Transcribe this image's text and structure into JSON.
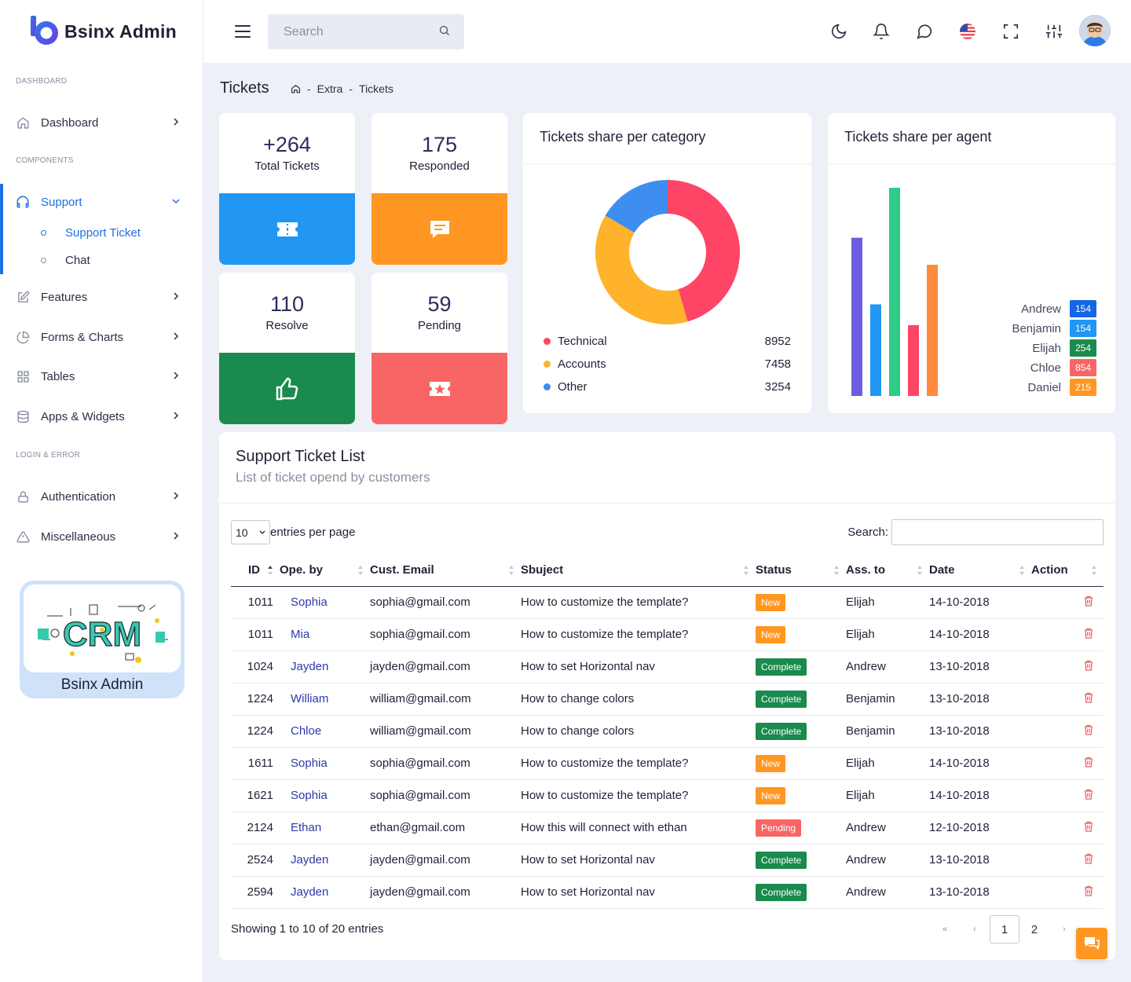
{
  "app": {
    "name": "Bsinx Admin"
  },
  "sidebar": {
    "sections": [
      "DASHBOARD",
      "COMPONENTS",
      "LOGIN & ERROR"
    ],
    "items": [
      {
        "label": "Dashboard",
        "icon": "home-icon"
      },
      {
        "label": "Support",
        "icon": "headphones-icon"
      },
      {
        "label": "Features",
        "icon": "edit-icon"
      },
      {
        "label": "Forms & Charts",
        "icon": "pie-chart-icon"
      },
      {
        "label": "Tables",
        "icon": "grid-icon"
      },
      {
        "label": "Apps & Widgets",
        "icon": "database-icon"
      },
      {
        "label": "Authentication",
        "icon": "lock-icon"
      },
      {
        "label": "Miscellaneous",
        "icon": "alert-triangle-icon"
      }
    ],
    "support_sub": [
      "Support Ticket",
      "Chat"
    ],
    "promo": {
      "title": "Bsinx Admin",
      "image_text": "CRM"
    }
  },
  "header": {
    "search_placeholder": "Search",
    "icons": [
      "moon-icon",
      "bell-icon",
      "chat-bubble-icon",
      "us-flag-icon",
      "fullscreen-icon",
      "sliders-icon"
    ]
  },
  "page": {
    "title": "Tickets",
    "breadcrumb": [
      "Extra",
      "Tickets"
    ],
    "breadcrumb_sep": "-"
  },
  "stats": [
    {
      "value": "+264",
      "label": "Total Tickets",
      "color": "#2196f3",
      "icon": "ticket-icon"
    },
    {
      "value": "175",
      "label": "Responded",
      "color": "#ff9722",
      "icon": "message-icon"
    },
    {
      "value": "110",
      "label": "Resolve",
      "color": "#1a8a4e",
      "icon": "thumbs-up-icon"
    },
    {
      "value": "59",
      "label": "Pending",
      "color": "#f96565",
      "icon": "star-ticket-icon"
    }
  ],
  "category_panel": {
    "title": "Tickets share per category",
    "chart_data": {
      "type": "pie",
      "donut": true,
      "categories": [
        "Technical",
        "Accounts",
        "Other"
      ],
      "values": [
        8952,
        7458,
        3254
      ],
      "colors": [
        "#ff4565",
        "#ffb22b",
        "#3d8ef0"
      ]
    }
  },
  "agent_panel": {
    "title": "Tickets share per agent",
    "agents": [
      {
        "name": "Andrew",
        "value": "154",
        "color": "#1466e5"
      },
      {
        "name": "Benjamin",
        "value": "154",
        "color": "#2196f3"
      },
      {
        "name": "Elijah",
        "value": "254",
        "color": "#1a8a4e"
      },
      {
        "name": "Chloe",
        "value": "854",
        "color": "#f96565"
      },
      {
        "name": "Daniel",
        "value": "215",
        "color": "#ff9722"
      }
    ],
    "chart_data": {
      "type": "bar",
      "colors": [
        "#6a5de0",
        "#2196f3",
        "#2ecc87",
        "#ff4565",
        "#ff8a3d"
      ],
      "values": [
        76,
        44,
        100,
        34,
        63
      ],
      "ylim": [
        0,
        100
      ]
    }
  },
  "ticket_list": {
    "title": "Support Ticket List",
    "subtitle": "List of ticket opend by customers",
    "entries_value": "10",
    "entries_label": "entries per page",
    "search_label": "Search:",
    "columns": [
      "ID",
      "Ope. by",
      "Cust. Email",
      "Sbuject",
      "Status",
      "Ass. to",
      "Date",
      "Action"
    ],
    "rows": [
      {
        "id": "1011",
        "by": "Sophia",
        "email": "sophia@gmail.com",
        "subject": "How to customize the template?",
        "status": "New",
        "to": "Elijah",
        "date": "14-10-2018"
      },
      {
        "id": "1011",
        "by": "Mia",
        "email": "sophia@gmail.com",
        "subject": "How to customize the template?",
        "status": "New",
        "to": "Elijah",
        "date": "14-10-2018"
      },
      {
        "id": "1024",
        "by": "Jayden",
        "email": "jayden@gmail.com",
        "subject": "How to set Horizontal nav",
        "status": "Complete",
        "to": "Andrew",
        "date": "13-10-2018"
      },
      {
        "id": "1224",
        "by": "William",
        "email": "william@gmail.com",
        "subject": "How to change colors",
        "status": "Complete",
        "to": "Benjamin",
        "date": "13-10-2018"
      },
      {
        "id": "1224",
        "by": "Chloe",
        "email": "william@gmail.com",
        "subject": "How to change colors",
        "status": "Complete",
        "to": "Benjamin",
        "date": "13-10-2018"
      },
      {
        "id": "1611",
        "by": "Sophia",
        "email": "sophia@gmail.com",
        "subject": "How to customize the template?",
        "status": "New",
        "to": "Elijah",
        "date": "14-10-2018"
      },
      {
        "id": "1621",
        "by": "Sophia",
        "email": "sophia@gmail.com",
        "subject": "How to customize the template?",
        "status": "New",
        "to": "Elijah",
        "date": "14-10-2018"
      },
      {
        "id": "2124",
        "by": "Ethan",
        "email": "ethan@gmail.com",
        "subject": "How this will connect with ethan",
        "status": "Pending",
        "to": "Andrew",
        "date": "12-10-2018"
      },
      {
        "id": "2524",
        "by": "Jayden",
        "email": "jayden@gmail.com",
        "subject": "How to set Horizontal nav",
        "status": "Complete",
        "to": "Andrew",
        "date": "13-10-2018"
      },
      {
        "id": "2594",
        "by": "Jayden",
        "email": "jayden@gmail.com",
        "subject": "How to set Horizontal nav",
        "status": "Complete",
        "to": "Andrew",
        "date": "13-10-2018"
      }
    ],
    "status_colors": {
      "New": "#ff9722",
      "Complete": "#1a8a4e",
      "Pending": "#f96565"
    },
    "footer": "Showing 1 to 10 of 20 entries",
    "pager": {
      "first": "«",
      "prev": "‹",
      "pages": [
        "1",
        "2"
      ],
      "next": "›"
    }
  }
}
